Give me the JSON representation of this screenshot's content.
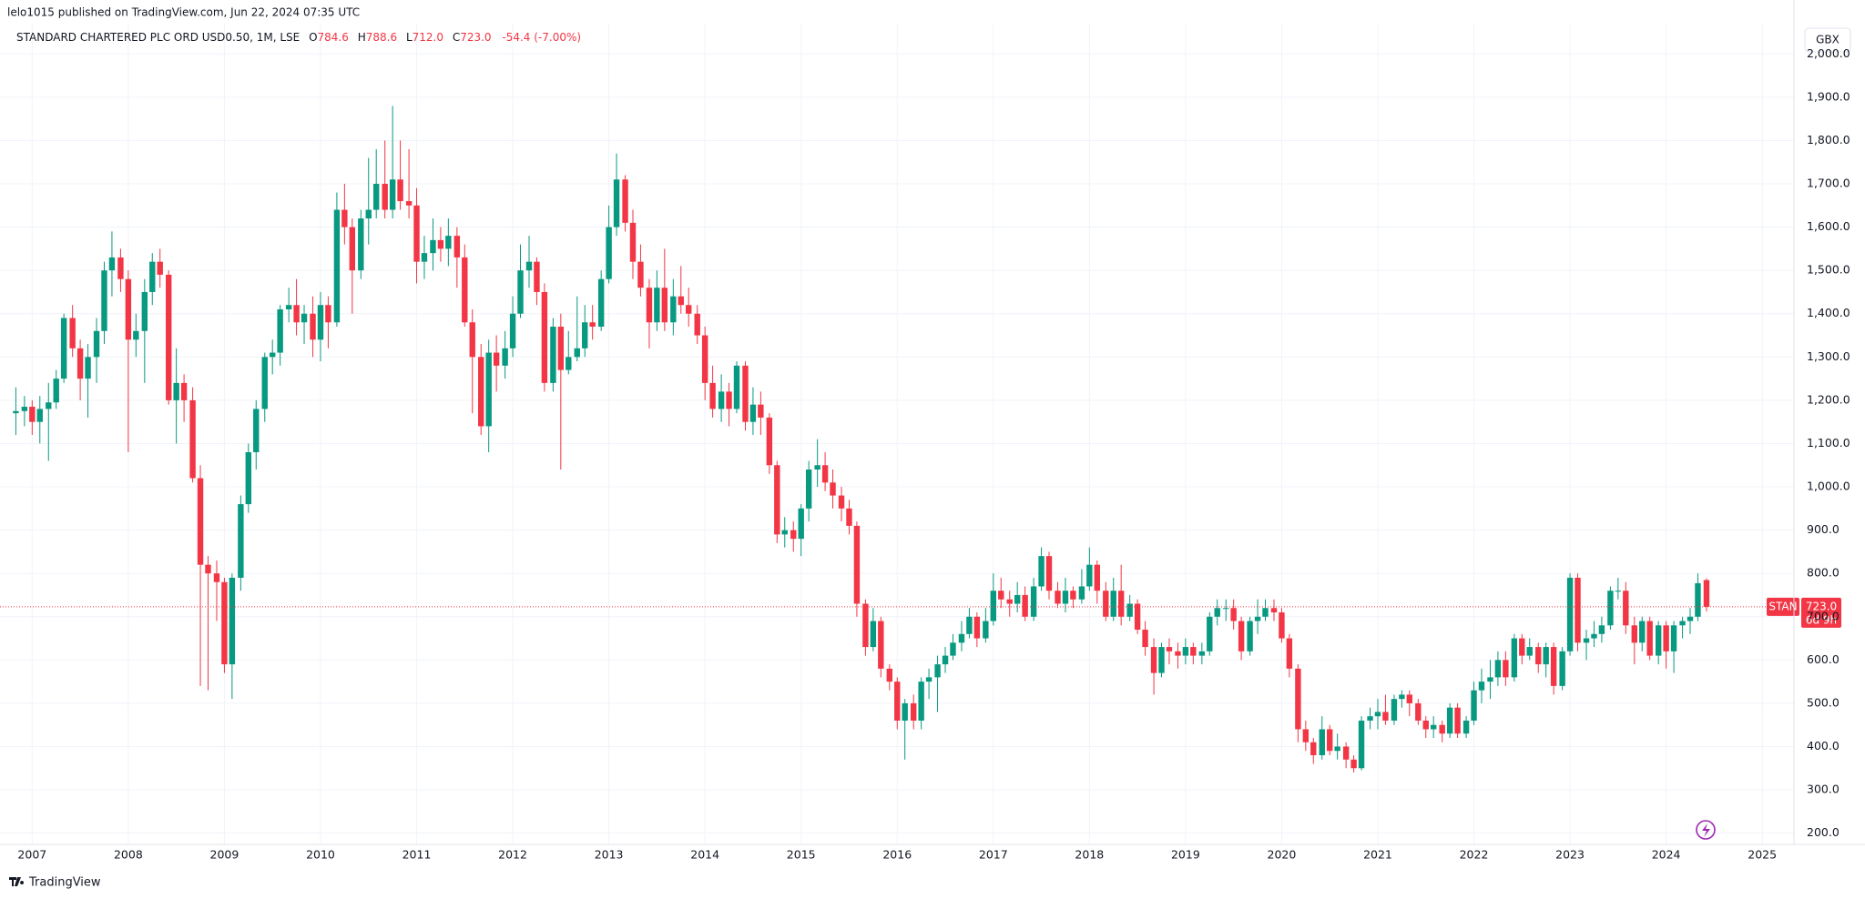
{
  "header": {
    "publisher": "lelo1015 published on TradingView.com, Jun 22, 2024 07:35 UTC"
  },
  "footer": {
    "brand": "TradingView"
  },
  "chart_data": {
    "type": "candlestick",
    "currency": "GBX",
    "legend": {
      "symbol": "STANDARD CHARTERED PLC ORD USD0.50, 1M, LSE",
      "items": [
        {
          "key": "O",
          "value": "784.6"
        },
        {
          "key": "H",
          "value": "788.6"
        },
        {
          "key": "L",
          "value": "712.0"
        },
        {
          "key": "C",
          "value": "723.0"
        }
      ],
      "change": "-54.4 (-7.00%)"
    },
    "last_price": {
      "ticker": "STAN",
      "label": "723.0",
      "countdown": "6d 9h"
    },
    "up_color": "#089981",
    "down_color": "#f23645",
    "grid": true,
    "xlim": [
      2006.76,
      2025.33
    ],
    "xticks": [
      2007,
      2008,
      2009,
      2010,
      2011,
      2012,
      2013,
      2014,
      2015,
      2016,
      2017,
      2018,
      2019,
      2020,
      2021,
      2022,
      2023,
      2024,
      2025
    ],
    "ylim": [
      174,
      2070
    ],
    "yticks": [
      {
        "value": 200,
        "label": "200.0"
      },
      {
        "value": 300,
        "label": "300.0"
      },
      {
        "value": 400,
        "label": "400.0"
      },
      {
        "value": 500,
        "label": "500.0"
      },
      {
        "value": 600,
        "label": "600.0"
      },
      {
        "value": 700,
        "label": "700.0"
      },
      {
        "value": 800,
        "label": "800.0"
      },
      {
        "value": 900,
        "label": "900.0"
      },
      {
        "value": 1000,
        "label": "1,000.0"
      },
      {
        "value": 1100,
        "label": "1,100.0"
      },
      {
        "value": 1200,
        "label": "1,200.0"
      },
      {
        "value": 1300,
        "label": "1,300.0"
      },
      {
        "value": 1400,
        "label": "1,400.0"
      },
      {
        "value": 1500,
        "label": "1,500.0"
      },
      {
        "value": 1600,
        "label": "1,600.0"
      },
      {
        "value": 1700,
        "label": "1,700.0"
      },
      {
        "value": 1800,
        "label": "1,800.0"
      },
      {
        "value": 1900,
        "label": "1,900.0"
      },
      {
        "value": 2000,
        "label": "2,000.0"
      }
    ],
    "x": [
      2006.83,
      2006.92,
      2007,
      2007.08,
      2007.17,
      2007.25,
      2007.33,
      2007.42,
      2007.5,
      2007.58,
      2007.67,
      2007.75,
      2007.83,
      2007.92,
      2008,
      2008.08,
      2008.17,
      2008.25,
      2008.33,
      2008.42,
      2008.5,
      2008.58,
      2008.67,
      2008.75,
      2008.83,
      2008.92,
      2009,
      2009.08,
      2009.17,
      2009.25,
      2009.33,
      2009.42,
      2009.5,
      2009.58,
      2009.67,
      2009.75,
      2009.83,
      2009.92,
      2010,
      2010.08,
      2010.17,
      2010.25,
      2010.33,
      2010.42,
      2010.5,
      2010.58,
      2010.67,
      2010.75,
      2010.83,
      2010.92,
      2011,
      2011.08,
      2011.17,
      2011.25,
      2011.33,
      2011.42,
      2011.5,
      2011.58,
      2011.67,
      2011.75,
      2011.83,
      2011.92,
      2012,
      2012.08,
      2012.17,
      2012.25,
      2012.33,
      2012.42,
      2012.5,
      2012.58,
      2012.67,
      2012.75,
      2012.83,
      2012.92,
      2013,
      2013.08,
      2013.17,
      2013.25,
      2013.33,
      2013.42,
      2013.5,
      2013.58,
      2013.67,
      2013.75,
      2013.83,
      2013.92,
      2014,
      2014.08,
      2014.17,
      2014.25,
      2014.33,
      2014.42,
      2014.5,
      2014.58,
      2014.67,
      2014.75,
      2014.83,
      2014.92,
      2015,
      2015.08,
      2015.17,
      2015.25,
      2015.33,
      2015.42,
      2015.5,
      2015.58,
      2015.67,
      2015.75,
      2015.83,
      2015.92,
      2016,
      2016.08,
      2016.17,
      2016.25,
      2016.33,
      2016.42,
      2016.5,
      2016.58,
      2016.67,
      2016.75,
      2016.83,
      2016.92,
      2017,
      2017.08,
      2017.17,
      2017.25,
      2017.33,
      2017.42,
      2017.5,
      2017.58,
      2017.67,
      2017.75,
      2017.83,
      2017.92,
      2018,
      2018.08,
      2018.17,
      2018.25,
      2018.33,
      2018.42,
      2018.5,
      2018.58,
      2018.67,
      2018.75,
      2018.83,
      2018.92,
      2019,
      2019.08,
      2019.17,
      2019.25,
      2019.33,
      2019.42,
      2019.5,
      2019.58,
      2019.67,
      2019.75,
      2019.83,
      2019.92,
      2020,
      2020.08,
      2020.17,
      2020.25,
      2020.33,
      2020.42,
      2020.5,
      2020.58,
      2020.67,
      2020.75,
      2020.83,
      2020.92,
      2021,
      2021.08,
      2021.17,
      2021.25,
      2021.33,
      2021.42,
      2021.5,
      2021.58,
      2021.67,
      2021.75,
      2021.83,
      2021.92,
      2022,
      2022.08,
      2022.17,
      2022.25,
      2022.33,
      2022.42,
      2022.5,
      2022.58,
      2022.67,
      2022.75,
      2022.83,
      2022.92,
      2023,
      2023.08,
      2023.17,
      2023.25,
      2023.33,
      2023.42,
      2023.5,
      2023.58,
      2023.67,
      2023.75,
      2023.83,
      2023.92,
      2024,
      2024.08,
      2024.17,
      2024.25,
      2024.33,
      2024.42
    ],
    "open": [
      1170,
      1175,
      1185,
      1150,
      1180,
      1195,
      1250,
      1390,
      1320,
      1250,
      1300,
      1360,
      1500,
      1530,
      1480,
      1340,
      1360,
      1450,
      1520,
      1490,
      1200,
      1240,
      1200,
      1020,
      820,
      800,
      780,
      590,
      790,
      960,
      1080,
      1180,
      1300,
      1310,
      1410,
      1420,
      1380,
      1400,
      1340,
      1420,
      1380,
      1640,
      1600,
      1500,
      1620,
      1640,
      1700,
      1640,
      1710,
      1660,
      1650,
      1520,
      1540,
      1570,
      1550,
      1580,
      1530,
      1380,
      1300,
      1140,
      1310,
      1280,
      1320,
      1400,
      1500,
      1520,
      1450,
      1240,
      1370,
      1270,
      1300,
      1320,
      1380,
      1370,
      1480,
      1600,
      1710,
      1610,
      1520,
      1460,
      1380,
      1460,
      1380,
      1440,
      1420,
      1400,
      1350,
      1240,
      1180,
      1220,
      1180,
      1280,
      1150,
      1190,
      1160,
      1050,
      890,
      900,
      880,
      950,
      1040,
      1050,
      1010,
      980,
      950,
      910,
      730,
      630,
      690,
      580,
      550,
      460,
      500,
      460,
      550,
      560,
      590,
      610,
      640,
      660,
      700,
      650,
      690,
      760,
      740,
      730,
      750,
      700,
      770,
      840,
      760,
      730,
      760,
      740,
      770,
      820,
      760,
      700,
      760,
      700,
      730,
      670,
      630,
      570,
      630,
      620,
      610,
      630,
      610,
      620,
      700,
      720,
      720,
      690,
      620,
      690,
      700,
      720,
      710,
      650,
      580,
      440,
      410,
      380,
      440,
      390,
      400,
      370,
      350,
      460,
      470,
      480,
      460,
      510,
      520,
      500,
      460,
      440,
      450,
      430,
      490,
      430,
      460,
      530,
      550,
      560,
      600,
      560,
      650,
      610,
      630,
      590,
      630,
      540,
      620,
      790,
      640,
      650,
      660,
      680,
      760,
      760,
      680,
      640,
      690,
      610,
      680,
      620,
      680,
      690,
      700,
      784.6
    ],
    "high": [
      1230,
      1210,
      1200,
      1210,
      1240,
      1270,
      1400,
      1420,
      1340,
      1330,
      1390,
      1520,
      1590,
      1550,
      1500,
      1400,
      1480,
      1540,
      1550,
      1500,
      1320,
      1260,
      1230,
      1050,
      840,
      830,
      790,
      800,
      980,
      1100,
      1200,
      1310,
      1340,
      1420,
      1460,
      1480,
      1420,
      1440,
      1450,
      1440,
      1680,
      1700,
      1620,
      1640,
      1760,
      1780,
      1800,
      1880,
      1800,
      1780,
      1690,
      1580,
      1620,
      1600,
      1620,
      1600,
      1560,
      1410,
      1330,
      1340,
      1350,
      1360,
      1440,
      1560,
      1580,
      1530,
      1470,
      1390,
      1400,
      1360,
      1440,
      1420,
      1420,
      1500,
      1650,
      1770,
      1720,
      1640,
      1560,
      1480,
      1500,
      1550,
      1480,
      1510,
      1460,
      1420,
      1370,
      1280,
      1260,
      1240,
      1290,
      1290,
      1230,
      1220,
      1170,
      1060,
      930,
      920,
      960,
      1060,
      1110,
      1080,
      1040,
      1000,
      970,
      920,
      740,
      720,
      700,
      590,
      560,
      510,
      520,
      560,
      580,
      610,
      630,
      660,
      690,
      720,
      710,
      720,
      800,
      790,
      760,
      780,
      770,
      790,
      860,
      850,
      780,
      790,
      770,
      810,
      860,
      830,
      780,
      790,
      820,
      750,
      740,
      690,
      650,
      640,
      650,
      640,
      650,
      640,
      640,
      710,
      740,
      740,
      740,
      700,
      700,
      740,
      740,
      740,
      720,
      660,
      590,
      460,
      420,
      470,
      450,
      430,
      410,
      380,
      470,
      490,
      510,
      520,
      520,
      530,
      530,
      510,
      470,
      470,
      460,
      500,
      500,
      470,
      550,
      580,
      600,
      620,
      620,
      660,
      660,
      650,
      640,
      640,
      640,
      630,
      800,
      800,
      670,
      690,
      700,
      770,
      790,
      780,
      700,
      700,
      700,
      690,
      690,
      690,
      700,
      720,
      800,
      788.6
    ],
    "low": [
      1120,
      1140,
      1120,
      1100,
      1060,
      1180,
      1240,
      1300,
      1200,
      1160,
      1240,
      1330,
      1440,
      1450,
      1080,
      1300,
      1240,
      1420,
      1460,
      1190,
      1100,
      1150,
      1010,
      540,
      530,
      690,
      570,
      510,
      760,
      940,
      1040,
      1150,
      1260,
      1280,
      1380,
      1350,
      1330,
      1300,
      1290,
      1320,
      1370,
      1560,
      1400,
      1480,
      1560,
      1620,
      1620,
      1620,
      1640,
      1620,
      1470,
      1480,
      1500,
      1520,
      1510,
      1460,
      1370,
      1170,
      1120,
      1080,
      1220,
      1250,
      1300,
      1390,
      1460,
      1420,
      1220,
      1220,
      1040,
      1260,
      1290,
      1300,
      1340,
      1360,
      1470,
      1580,
      1590,
      1480,
      1440,
      1320,
      1360,
      1360,
      1350,
      1400,
      1370,
      1330,
      1200,
      1160,
      1150,
      1140,
      1170,
      1130,
      1120,
      1120,
      1030,
      870,
      860,
      850,
      840,
      920,
      1000,
      990,
      950,
      920,
      890,
      700,
      610,
      620,
      560,
      530,
      440,
      370,
      440,
      440,
      510,
      480,
      570,
      600,
      620,
      650,
      630,
      640,
      680,
      720,
      700,
      710,
      690,
      690,
      760,
      740,
      720,
      710,
      720,
      730,
      760,
      730,
      690,
      690,
      680,
      690,
      660,
      610,
      520,
      560,
      590,
      580,
      590,
      590,
      590,
      610,
      680,
      690,
      670,
      600,
      610,
      660,
      690,
      690,
      640,
      560,
      410,
      390,
      360,
      370,
      380,
      370,
      350,
      340,
      345,
      440,
      440,
      450,
      450,
      490,
      470,
      450,
      420,
      420,
      410,
      420,
      420,
      420,
      450,
      500,
      510,
      540,
      540,
      550,
      590,
      600,
      570,
      560,
      520,
      530,
      610,
      620,
      600,
      630,
      640,
      670,
      740,
      660,
      590,
      620,
      600,
      590,
      580,
      570,
      650,
      660,
      690,
      712
    ],
    "close": [
      1175,
      1185,
      1150,
      1180,
      1195,
      1250,
      1390,
      1320,
      1250,
      1300,
      1360,
      1500,
      1530,
      1480,
      1340,
      1360,
      1450,
      1520,
      1490,
      1200,
      1240,
      1200,
      1020,
      820,
      800,
      780,
      590,
      790,
      960,
      1080,
      1180,
      1300,
      1310,
      1410,
      1420,
      1380,
      1400,
      1340,
      1420,
      1380,
      1640,
      1600,
      1500,
      1620,
      1640,
      1700,
      1640,
      1710,
      1660,
      1650,
      1520,
      1540,
      1570,
      1550,
      1580,
      1530,
      1380,
      1300,
      1140,
      1310,
      1280,
      1320,
      1400,
      1500,
      1520,
      1450,
      1240,
      1370,
      1270,
      1300,
      1320,
      1380,
      1370,
      1480,
      1600,
      1710,
      1610,
      1520,
      1460,
      1380,
      1460,
      1380,
      1440,
      1420,
      1400,
      1350,
      1240,
      1180,
      1220,
      1180,
      1280,
      1150,
      1190,
      1160,
      1050,
      890,
      900,
      880,
      950,
      1040,
      1050,
      1010,
      980,
      950,
      910,
      730,
      630,
      690,
      580,
      550,
      460,
      500,
      460,
      550,
      560,
      590,
      610,
      640,
      660,
      700,
      650,
      690,
      760,
      740,
      730,
      750,
      700,
      770,
      840,
      760,
      730,
      760,
      740,
      770,
      820,
      760,
      700,
      760,
      700,
      730,
      670,
      630,
      570,
      630,
      620,
      610,
      630,
      610,
      620,
      700,
      720,
      720,
      690,
      620,
      690,
      700,
      720,
      710,
      650,
      580,
      440,
      410,
      380,
      440,
      390,
      400,
      370,
      350,
      460,
      470,
      480,
      460,
      510,
      520,
      500,
      460,
      440,
      450,
      430,
      490,
      430,
      460,
      530,
      550,
      560,
      600,
      560,
      650,
      610,
      630,
      590,
      630,
      540,
      620,
      790,
      640,
      650,
      660,
      680,
      760,
      760,
      680,
      640,
      690,
      610,
      680,
      620,
      680,
      690,
      700,
      777.4,
      723
    ]
  }
}
